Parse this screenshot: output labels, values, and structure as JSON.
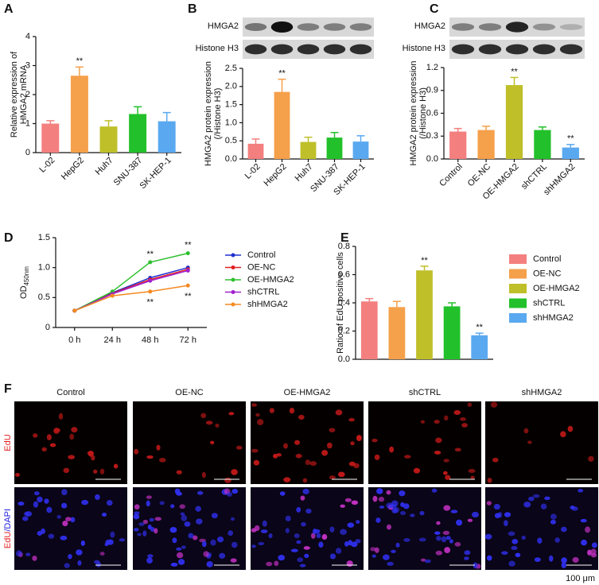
{
  "panel_labels": [
    "A",
    "B",
    "C",
    "D",
    "E",
    "F"
  ],
  "chart_data": [
    {
      "type": "bar",
      "ylabel": [
        "Relative expression of",
        "HMGA2 mRNA"
      ],
      "categories": [
        "L-02",
        "HepG2",
        "Huh7",
        "SNU-387",
        "SK-HEP-1"
      ],
      "values": [
        1.0,
        2.65,
        0.9,
        1.33,
        1.08
      ],
      "errors": [
        0.1,
        0.3,
        0.2,
        0.25,
        0.3
      ],
      "annotations": [
        null,
        "**",
        null,
        null,
        null
      ],
      "colors": [
        "#f47f7f",
        "#f5a04a",
        "#bfbf2a",
        "#22c02a",
        "#5aa9f0"
      ],
      "ylim": [
        0,
        4
      ],
      "yticks": [
        0,
        1,
        2,
        3,
        4
      ]
    },
    {
      "type": "bar",
      "blot_labels": [
        "HMGA2",
        "Histone H3"
      ],
      "ylabel": [
        "HMGA2 protein expression",
        "(/Histone H3)"
      ],
      "categories": [
        "L-02",
        "HepG2",
        "Huh7",
        "SNU-387",
        "SK-HEP-1"
      ],
      "values": [
        0.42,
        1.85,
        0.47,
        0.59,
        0.48
      ],
      "errors": [
        0.13,
        0.35,
        0.13,
        0.14,
        0.16
      ],
      "annotations": [
        null,
        "**",
        null,
        null,
        null
      ],
      "colors": [
        "#f47f7f",
        "#f5a04a",
        "#bfbf2a",
        "#22c02a",
        "#5aa9f0"
      ],
      "ylim": [
        0,
        2.5
      ],
      "yticks": [
        {
          "value": 0,
          "label": "0.0"
        },
        0.5,
        {
          "value": 1,
          "label": "1.0"
        },
        1.5,
        {
          "value": 2,
          "label": "2.0"
        },
        2.5
      ]
    },
    {
      "type": "bar",
      "blot_labels": [
        "HMGA2",
        "Histone H3"
      ],
      "ylabel": [
        "HMGA2 protein expression",
        "(/Histone H3)"
      ],
      "categories": [
        "Control",
        "OE-NC",
        "OE-HMGA2",
        "shCTRL",
        "shHMGA2"
      ],
      "values": [
        0.36,
        0.38,
        0.97,
        0.38,
        0.15
      ],
      "errors": [
        0.04,
        0.05,
        0.1,
        0.04,
        0.04
      ],
      "annotations": [
        null,
        null,
        "**",
        null,
        "**"
      ],
      "colors": [
        "#f47f7f",
        "#f5a04a",
        "#bfbf2a",
        "#22c02a",
        "#5aa9f0"
      ],
      "ylim": [
        0,
        1.2
      ],
      "yticks": [
        {
          "value": 0,
          "label": "0.0"
        },
        0.3,
        0.6,
        0.9,
        1.2
      ]
    },
    {
      "type": "line",
      "ylabel": [
        "OD",
        "450nm"
      ],
      "categories": [
        "0 h",
        "24 h",
        "48 h",
        "72 h"
      ],
      "series": [
        {
          "name": "Control",
          "color": "#1f2fd0",
          "values": [
            0.28,
            0.58,
            0.83,
            1.0
          ],
          "annotations": [
            null,
            null,
            null,
            null
          ]
        },
        {
          "name": "OE-NC",
          "color": "#e02020",
          "values": [
            0.28,
            0.57,
            0.8,
            0.97
          ],
          "annotations": [
            null,
            null,
            null,
            null
          ]
        },
        {
          "name": "OE-HMGA2",
          "color": "#2ec02e",
          "values": [
            0.28,
            0.6,
            1.09,
            1.24
          ],
          "annotations": [
            null,
            null,
            "**",
            "**"
          ]
        },
        {
          "name": "shCTRL",
          "color": "#a020d0",
          "values": [
            0.28,
            0.56,
            0.78,
            0.95
          ],
          "annotations": [
            null,
            null,
            null,
            null
          ]
        },
        {
          "name": "shHMGA2",
          "color": "#f58a20",
          "values": [
            0.28,
            0.53,
            0.6,
            0.7
          ],
          "annotations": [
            null,
            null,
            "**",
            "**"
          ]
        }
      ],
      "ylim": [
        0,
        1.5
      ],
      "yticks": [
        0,
        0.5,
        {
          "value": 1,
          "label": "1.0"
        },
        1.5
      ]
    },
    {
      "type": "bar",
      "legend": "right",
      "ylabel": [
        "Ratio of EdU positive cells"
      ],
      "categories": [
        "Control",
        "OE-NC",
        "OE-HMGA2",
        "shCTRL",
        "shHMGA2"
      ],
      "values": [
        0.41,
        0.37,
        0.63,
        0.375,
        0.17
      ],
      "errors": [
        0.02,
        0.04,
        0.03,
        0.025,
        0.015
      ],
      "annotations": [
        null,
        null,
        "**",
        null,
        "**"
      ],
      "colors": [
        "#f47f7f",
        "#f5a04a",
        "#bfbf2a",
        "#22c02a",
        "#5aa9f0"
      ],
      "ylim": [
        0,
        0.8
      ],
      "yticks": [
        {
          "value": 0,
          "label": "0.0"
        },
        0.2,
        0.4,
        0.6,
        0.8
      ]
    }
  ],
  "images": {
    "columns": [
      "Control",
      "OE-NC",
      "OE-HMGA2",
      "shCTRL",
      "shHMGA2"
    ],
    "rows": [
      [
        "EdU"
      ],
      [
        "EdU",
        "/DAPI"
      ]
    ],
    "scale": "100 μm"
  }
}
